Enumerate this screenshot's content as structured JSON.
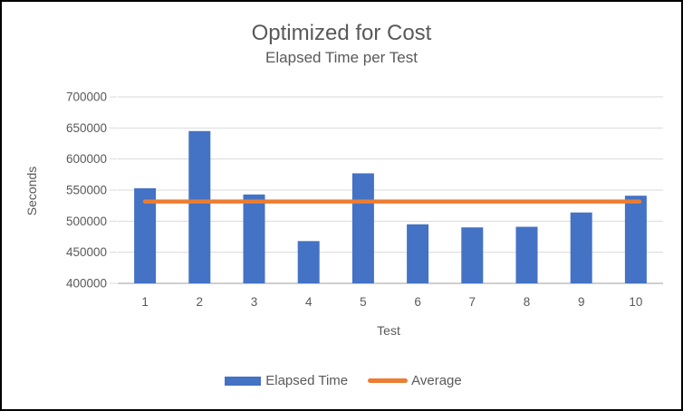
{
  "chart_data": {
    "type": "bar",
    "title": "Optimized for Cost",
    "subtitle": "Elapsed Time per Test",
    "xlabel": "Test",
    "ylabel": "Seconds",
    "categories": [
      "1",
      "2",
      "3",
      "4",
      "5",
      "6",
      "7",
      "8",
      "9",
      "10"
    ],
    "series": [
      {
        "name": "Elapsed Time",
        "type": "bar",
        "color": "#4472C4",
        "values": [
          553000,
          645000,
          543000,
          468000,
          577000,
          495000,
          490000,
          491000,
          514000,
          541000
        ]
      },
      {
        "name": "Average",
        "type": "line",
        "color": "#ED7D31",
        "value": 531700
      }
    ],
    "ylim": [
      400000,
      700000
    ],
    "ytick_step": 50000,
    "grid": true,
    "legend_position": "bottom"
  },
  "colors": {
    "bar_blue": "#4472C4",
    "line_orange": "#ED7D31",
    "text_gray": "#595959",
    "gridline": "#D9D9D9",
    "axis_line": "#BFBFBF",
    "frame_border": "#000000"
  }
}
